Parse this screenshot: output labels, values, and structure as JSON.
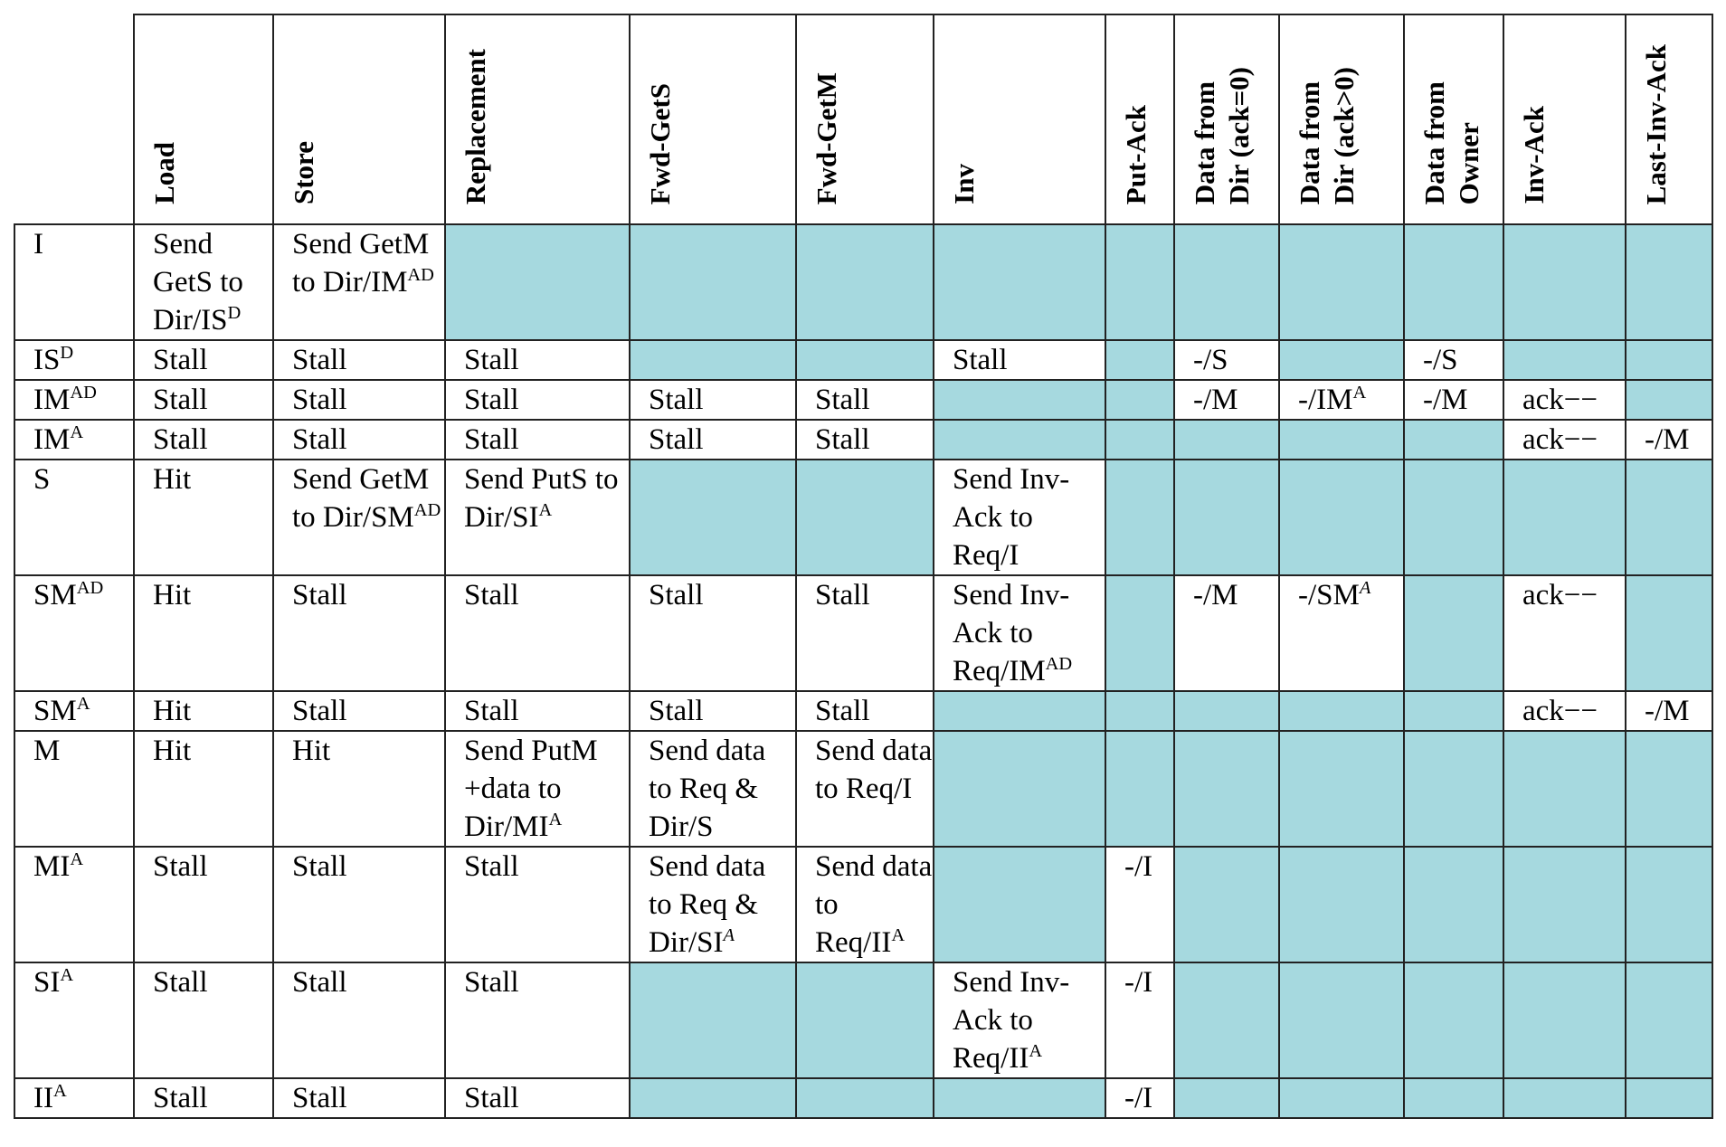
{
  "table": {
    "shaded_color": "#a6d9df",
    "columns": [
      "Load",
      "Store",
      "Replacement",
      "Fwd-GetS",
      "Fwd-GetM",
      "Inv",
      "Put-Ack",
      "Data from\nDir (ack=0)",
      "Data from\nDir (ack>0)",
      "Data from\nOwner",
      "Inv-Ack",
      "Last-Inv-Ack"
    ],
    "rows": [
      {
        "state": "I",
        "state_sup": "",
        "cells": [
          {
            "text": "Send GetS to Dir/IS",
            "sup": "D"
          },
          {
            "text": "Send GetM to Dir/IM",
            "sup": "AD"
          },
          null,
          null,
          null,
          null,
          null,
          null,
          null,
          null,
          null,
          null
        ]
      },
      {
        "state": "IS",
        "state_sup": "D",
        "cells": [
          {
            "text": "Stall"
          },
          {
            "text": "Stall"
          },
          {
            "text": "Stall"
          },
          null,
          null,
          {
            "text": "Stall"
          },
          null,
          {
            "text": "-/S"
          },
          null,
          {
            "text": "-/S"
          },
          null,
          null
        ]
      },
      {
        "state": "IM",
        "state_sup": "AD",
        "cells": [
          {
            "text": "Stall"
          },
          {
            "text": "Stall"
          },
          {
            "text": "Stall"
          },
          {
            "text": "Stall"
          },
          {
            "text": "Stall"
          },
          null,
          null,
          {
            "text": "-/M"
          },
          {
            "text": "-/IM",
            "sup": "A"
          },
          {
            "text": "-/M"
          },
          {
            "text": "ack−−"
          },
          null
        ]
      },
      {
        "state": "IM",
        "state_sup": "A",
        "cells": [
          {
            "text": "Stall"
          },
          {
            "text": "Stall"
          },
          {
            "text": "Stall"
          },
          {
            "text": "Stall"
          },
          {
            "text": "Stall"
          },
          null,
          null,
          null,
          null,
          null,
          {
            "text": "ack−−"
          },
          {
            "text": "-/M"
          }
        ]
      },
      {
        "state": "S",
        "state_sup": "",
        "cells": [
          {
            "text": "Hit"
          },
          {
            "text": "Send GetM to Dir/SM",
            "sup": "AD"
          },
          {
            "text": "Send PutS to Dir/SI",
            "sup": "A"
          },
          null,
          null,
          {
            "text": "Send Inv-Ack to Req/I"
          },
          null,
          null,
          null,
          null,
          null,
          null
        ]
      },
      {
        "state": "SM",
        "state_sup": "AD",
        "cells": [
          {
            "text": "Hit"
          },
          {
            "text": "Stall"
          },
          {
            "text": "Stall"
          },
          {
            "text": "Stall"
          },
          {
            "text": "Stall"
          },
          {
            "text": "Send Inv-Ack to Req/IM",
            "sup": "AD"
          },
          null,
          {
            "text": "-/M"
          },
          {
            "text": "-/SM",
            "sup": "A",
            "sup_italic": true
          },
          null,
          {
            "text": "ack−−"
          },
          null
        ]
      },
      {
        "state": "SM",
        "state_sup": "A",
        "cells": [
          {
            "text": "Hit"
          },
          {
            "text": "Stall"
          },
          {
            "text": "Stall"
          },
          {
            "text": "Stall"
          },
          {
            "text": "Stall"
          },
          null,
          null,
          null,
          null,
          null,
          {
            "text": "ack−−"
          },
          {
            "text": "-/M"
          }
        ]
      },
      {
        "state": "M",
        "state_sup": "",
        "cells": [
          {
            "text": "Hit"
          },
          {
            "text": "Hit"
          },
          {
            "text": "Send PutM +data to Dir/MI",
            "sup": "A"
          },
          {
            "text": "Send data to Req & Dir/S"
          },
          {
            "text": "Send data to Req/I"
          },
          null,
          null,
          null,
          null,
          null,
          null,
          null
        ]
      },
      {
        "state": "MI",
        "state_sup": "A",
        "cells": [
          {
            "text": "Stall"
          },
          {
            "text": "Stall"
          },
          {
            "text": "Stall"
          },
          {
            "text": "Send data to Req & Dir/SI",
            "sup": "A",
            "sup_italic": true
          },
          {
            "text": "Send data to Req/II",
            "sup": "A"
          },
          null,
          {
            "text": "-/I"
          },
          null,
          null,
          null,
          null,
          null
        ]
      },
      {
        "state": "SI",
        "state_sup": "A",
        "cells": [
          {
            "text": "Stall"
          },
          {
            "text": "Stall"
          },
          {
            "text": "Stall"
          },
          null,
          null,
          {
            "text": "Send Inv-Ack to Req/II",
            "sup": "A"
          },
          {
            "text": "-/I"
          },
          null,
          null,
          null,
          null,
          null
        ]
      },
      {
        "state": "II",
        "state_sup": "A",
        "cells": [
          {
            "text": "Stall"
          },
          {
            "text": "Stall"
          },
          {
            "text": "Stall"
          },
          null,
          null,
          null,
          {
            "text": "-/I"
          },
          null,
          null,
          null,
          null,
          null
        ]
      }
    ]
  }
}
